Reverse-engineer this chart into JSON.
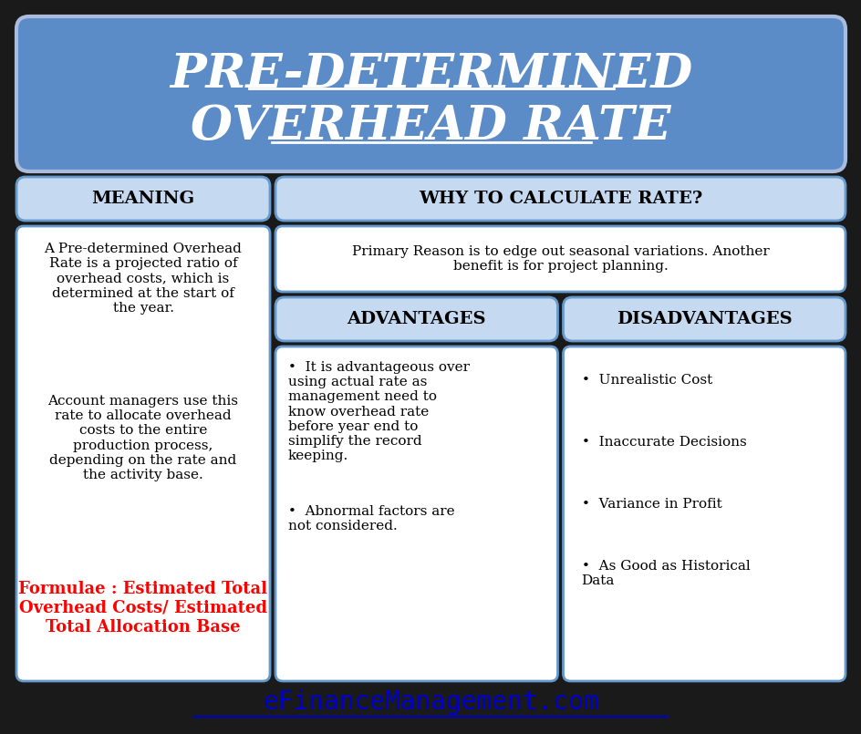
{
  "title_line1": "PRE-DETERMINED",
  "title_line2": "OVERHEAD RATE",
  "title_bg": "#5b8cc8",
  "title_text_color": "#ffffff",
  "bg_color": "#1a1a1a",
  "header_bg": "#c5d9f1",
  "header_text_color": "#000000",
  "meaning_header": "MEANING",
  "why_header": "WHY TO CALCULATE RATE?",
  "adv_header": "ADVANTAGES",
  "disadv_header": "DISADVANTAGES",
  "meaning_text1": "A Pre-determined Overhead\nRate is a projected ratio of\noverhead costs, which is\ndetermined at the start of\nthe year.",
  "meaning_text2": "Account managers use this\nrate to allocate overhead\ncosts to the entire\nproduction process,\ndepending on the rate and\nthe activity base.",
  "meaning_formula": "Formulae : Estimated Total\nOverhead Costs/ Estimated\nTotal Allocation Base",
  "why_text": "Primary Reason is to edge out seasonal variations. Another\nbenefit is for project planning.",
  "adv_items": [
    "It is advantageous over\nusing actual rate as\nmanagement need to\nknow overhead rate\nbefore year end to\nsimplify the record\nkeeping.",
    "Abnormal factors are\nnot considered."
  ],
  "disadv_items": [
    "Unrealistic Cost",
    "Inaccurate Decisions",
    "Variance in Profit",
    "As Good as Historical\nData"
  ],
  "formula_color": "#ff0000",
  "content_bg": "#ffffff",
  "footer_text": "eFinanceManagement.com",
  "footer_color": "#0000cc",
  "cell_border_color": "#6699cc",
  "font_family": "serif"
}
